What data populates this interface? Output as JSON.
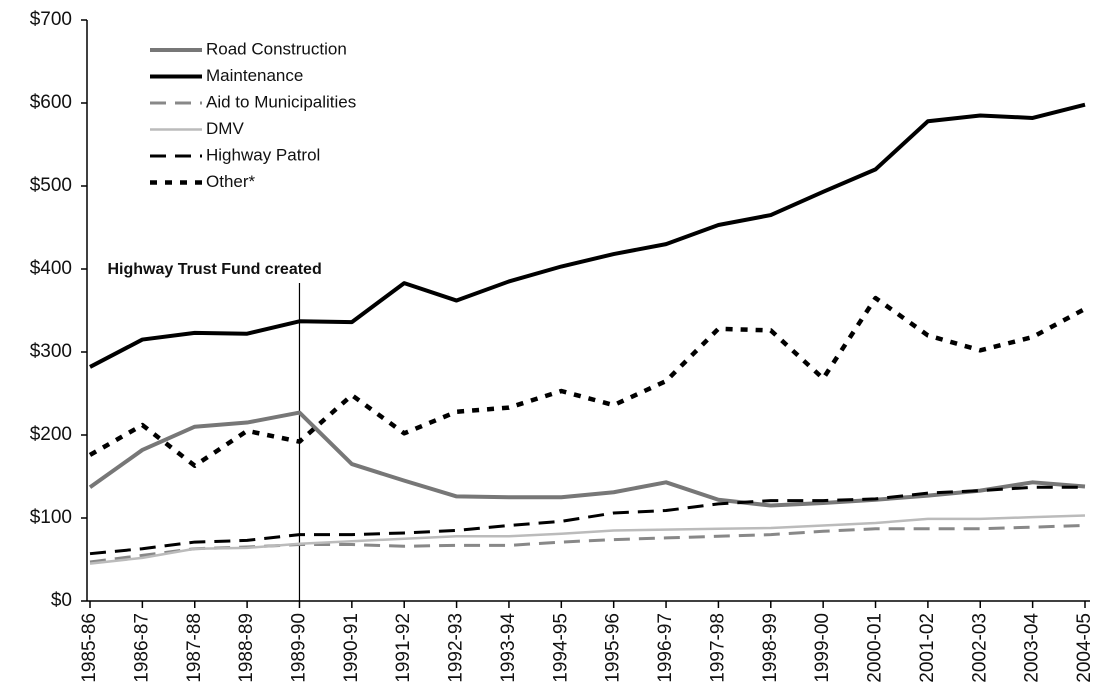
{
  "chart_data": {
    "type": "line",
    "categories": [
      "1985-86",
      "1986-87",
      "1987-88",
      "1988-89",
      "1989-90",
      "1990-91",
      "1991-92",
      "1992-93",
      "1993-94",
      "1994-95",
      "1995-96",
      "1996-97",
      "1997-98",
      "1998-99",
      "1999-00",
      "2000-01",
      "2001-02",
      "2002-03",
      "2003-04",
      "2004-05"
    ],
    "series": [
      {
        "name": "Road Construction",
        "color": "#777777",
        "style": "solid",
        "values": [
          137,
          182,
          210,
          215,
          227,
          165,
          145,
          126,
          125,
          125,
          131,
          143,
          122,
          115,
          118,
          122,
          127,
          133,
          143,
          138
        ]
      },
      {
        "name": "Maintenance",
        "color": "#000000",
        "style": "solid",
        "values": [
          282,
          315,
          323,
          322,
          337,
          336,
          383,
          362,
          385,
          403,
          418,
          430,
          453,
          465,
          493,
          520,
          578,
          585,
          582,
          598
        ]
      },
      {
        "name": "Aid to Municipalities",
        "color": "#888888",
        "style": "dashed",
        "values": [
          47,
          55,
          63,
          65,
          68,
          68,
          66,
          67,
          67,
          71,
          74,
          76,
          78,
          80,
          84,
          87,
          87,
          87,
          89,
          91
        ]
      },
      {
        "name": "DMV",
        "color": "#bbbbbb",
        "style": "thin",
        "values": [
          45,
          52,
          63,
          64,
          69,
          72,
          75,
          78,
          78,
          81,
          85,
          86,
          87,
          88,
          91,
          94,
          99,
          99,
          101,
          103
        ]
      },
      {
        "name": "Highway Patrol",
        "color": "#000000",
        "style": "dashed",
        "values": [
          57,
          63,
          71,
          73,
          80,
          80,
          82,
          85,
          91,
          96,
          106,
          109,
          117,
          121,
          121,
          123,
          130,
          133,
          137,
          137
        ]
      },
      {
        "name": "Other*",
        "color": "#000000",
        "style": "dotted",
        "values": [
          176,
          212,
          163,
          205,
          192,
          248,
          202,
          228,
          233,
          253,
          236,
          265,
          328,
          326,
          268,
          365,
          320,
          302,
          318,
          352
        ]
      }
    ],
    "ylim": [
      0,
      700
    ],
    "yticks": [
      {
        "value": 0,
        "label": "$0"
      },
      {
        "value": 100,
        "label": "$100"
      },
      {
        "value": 200,
        "label": "$200"
      },
      {
        "value": 300,
        "label": "$300"
      },
      {
        "value": 400,
        "label": "$400"
      },
      {
        "value": 500,
        "label": "$500"
      },
      {
        "value": 600,
        "label": "$600"
      },
      {
        "value": 700,
        "label": "$700"
      }
    ],
    "legend": "upper left",
    "annotation": {
      "text": "Highway Trust Fund created",
      "x": "1989-90"
    }
  }
}
